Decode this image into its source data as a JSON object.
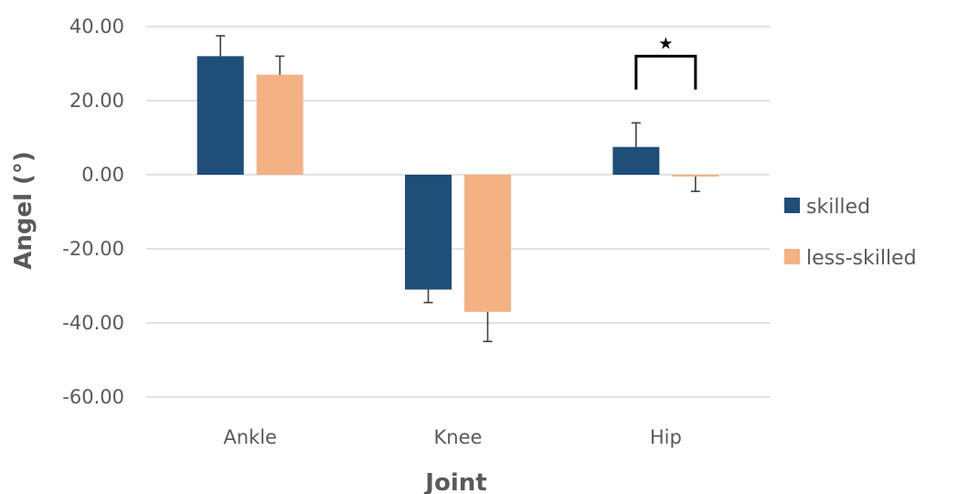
{
  "chart_data": {
    "type": "bar",
    "title": "",
    "xlabel": "Joint",
    "ylabel": "Angel (°)",
    "categories": [
      "Ankle",
      "Knee",
      "Hip"
    ],
    "ylim": [
      -60,
      40
    ],
    "yticks": [
      "40.00",
      "20.00",
      "0.00",
      "-20.00",
      "-40.00",
      "-60.00"
    ],
    "grid": true,
    "legend_position": "right",
    "series": [
      {
        "name": "skilled",
        "color": "#1f4e79",
        "values": [
          32,
          -31,
          7.5
        ],
        "errors": [
          5.5,
          3.5,
          6.5
        ]
      },
      {
        "name": "less-skilled",
        "color": "#f4b183",
        "values": [
          27,
          -37,
          -0.5
        ],
        "errors": [
          5,
          8,
          4
        ]
      }
    ],
    "annotations": [
      {
        "category": "Hip",
        "type": "significance-bracket",
        "symbol": "★"
      }
    ]
  }
}
